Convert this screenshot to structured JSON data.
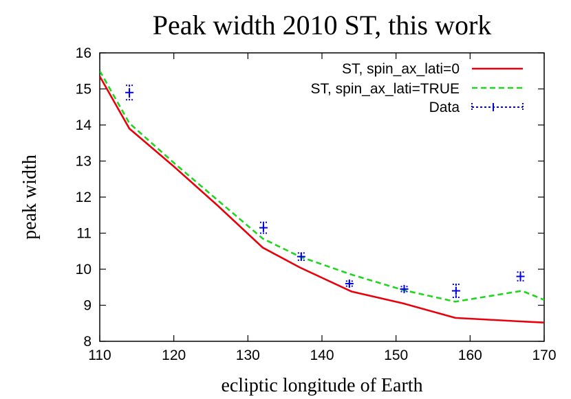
{
  "chart_data": {
    "type": "line",
    "title": "Peak width 2010 ST, this work",
    "xlabel": "ecliptic longitude of Earth",
    "ylabel": "peak width",
    "xlim": [
      110,
      170
    ],
    "ylim": [
      8,
      16
    ],
    "xticks": [
      110,
      120,
      130,
      140,
      150,
      160,
      170
    ],
    "yticks": [
      8,
      9,
      10,
      11,
      12,
      13,
      14,
      15,
      16
    ],
    "grid": false,
    "legend_position": "top-right",
    "series": [
      {
        "name": "ST, spin_ax_lati=0",
        "style": "solid",
        "color": "#e8000b",
        "x": [
          110,
          114,
          120,
          126,
          132,
          137,
          144,
          151,
          158,
          167,
          170
        ],
        "y": [
          15.35,
          13.9,
          12.85,
          11.75,
          10.6,
          10.05,
          9.38,
          9.05,
          8.65,
          8.55,
          8.52
        ]
      },
      {
        "name": "ST, spin_ax_lati=TRUE",
        "style": "dashed",
        "color": "#1ed61e",
        "x": [
          110,
          114,
          120,
          126,
          132,
          137,
          144,
          151,
          158,
          167,
          170
        ],
        "y": [
          15.5,
          14.05,
          12.95,
          11.9,
          10.85,
          10.35,
          9.85,
          9.42,
          9.1,
          9.4,
          9.15
        ]
      },
      {
        "name": "Data",
        "style": "errorbar",
        "color": "#0000e0",
        "x": [
          114,
          132.1,
          137.2,
          143.7,
          151.1,
          158.1,
          166.8
        ],
        "y": [
          14.9,
          11.15,
          10.35,
          9.6,
          9.45,
          9.4,
          9.8
        ],
        "yerr": [
          0.2,
          0.15,
          0.1,
          0.07,
          0.07,
          0.18,
          0.12
        ]
      }
    ]
  }
}
